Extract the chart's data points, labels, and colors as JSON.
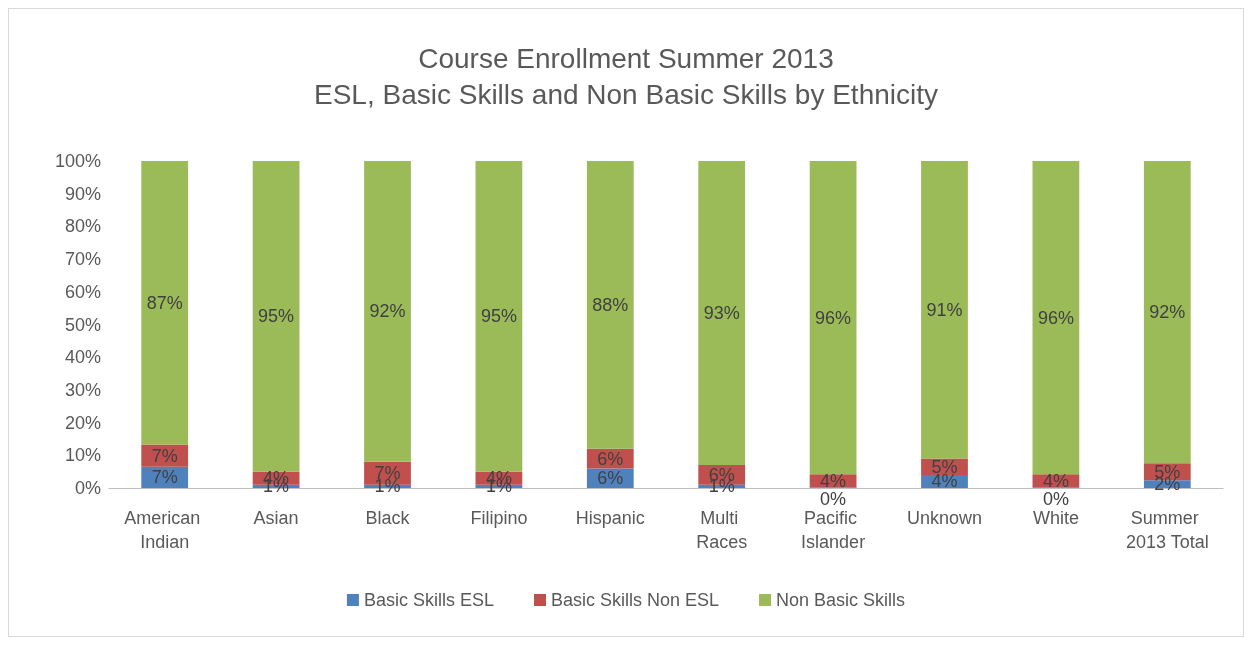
{
  "chart_data": {
    "type": "bar",
    "stacked": true,
    "title": "Course Enrollment Summer 2013",
    "subtitle": "ESL, Basic Skills and Non Basic Skills by Ethnicity",
    "categories": [
      "American Indian",
      "Asian",
      "Black",
      "Filipino",
      "Hispanic",
      "Multi Races",
      "Pacific Islander",
      "Unknown",
      "White",
      "Summer 2013 Total"
    ],
    "series": [
      {
        "name": "Basic Skills ESL",
        "color": "#4f81bd",
        "values": [
          6.5,
          1,
          1,
          1,
          6,
          1,
          0.2,
          4,
          0.2,
          2.4
        ],
        "value_labels": [
          "7%",
          "1%",
          "1%",
          "1%",
          "6%",
          "1%",
          "0%",
          "4%",
          "0%",
          "2%"
        ]
      },
      {
        "name": "Basic Skills Non ESL",
        "color": "#c0504d",
        "values": [
          6.8,
          4,
          7,
          4,
          6,
          6,
          4,
          5,
          4,
          5.2
        ],
        "value_labels": [
          "7%",
          "4%",
          "7%",
          "4%",
          "6%",
          "6%",
          "4%",
          "5%",
          "4%",
          "5%"
        ]
      },
      {
        "name": "Non Basic Skills",
        "color": "#9bbb59",
        "values": [
          86.7,
          95,
          92,
          95,
          88,
          93,
          96,
          91,
          96,
          92.4
        ],
        "value_labels": [
          "87%",
          "95%",
          "92%",
          "95%",
          "88%",
          "93%",
          "96%",
          "91%",
          "96%",
          "92%"
        ]
      }
    ],
    "ylim": [
      0,
      100
    ],
    "yticks": [
      {
        "value": 0,
        "label": "0%"
      },
      {
        "value": 10,
        "label": "10%"
      },
      {
        "value": 20,
        "label": "20%"
      },
      {
        "value": 30,
        "label": "30%"
      },
      {
        "value": 40,
        "label": "40%"
      },
      {
        "value": 50,
        "label": "50%"
      },
      {
        "value": 60,
        "label": "60%"
      },
      {
        "value": 70,
        "label": "70%"
      },
      {
        "value": 80,
        "label": "80%"
      },
      {
        "value": 90,
        "label": "90%"
      },
      {
        "value": 100,
        "label": "100%"
      }
    ],
    "grid": false,
    "legend": "bottom"
  }
}
